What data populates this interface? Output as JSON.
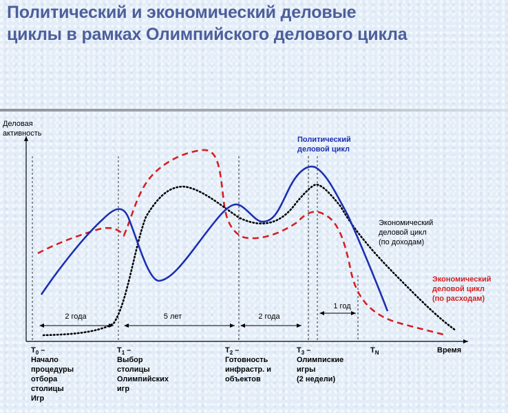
{
  "title": {
    "line1": "Политический и экономический деловые",
    "line2": "циклы в рамках Олимпийского делового цикла"
  },
  "axes": {
    "y_label_line1": "Деловая",
    "y_label_line2": "активность",
    "x_label": "Время"
  },
  "ticks": [
    {
      "name": "T",
      "sub": "0",
      "suffix": " –",
      "desc": [
        "Начало",
        "процедуры",
        "отбора",
        "столицы",
        "Игр"
      ]
    },
    {
      "name": "T",
      "sub": "1",
      "suffix": " –",
      "desc": [
        "Выбор",
        "столицы",
        "Олимпийских",
        "игр"
      ]
    },
    {
      "name": "T",
      "sub": "2",
      "suffix": " –",
      "desc": [
        "Готовность",
        "инфрастр. и",
        "объектов"
      ]
    },
    {
      "name": "T",
      "sub": "3",
      "suffix": " –",
      "desc": [
        "Олимпиские",
        "игры",
        "(2 недели)"
      ]
    },
    {
      "name": "T",
      "sub": "N",
      "suffix": "",
      "desc": []
    }
  ],
  "intervals": [
    "2 года",
    "5 лет",
    "2 года",
    "1 год"
  ],
  "series": {
    "political": {
      "label_line1": "Политический",
      "label_line2": "деловой цикл",
      "color": "#1c2fb0"
    },
    "economic_income": {
      "label_line1": "Экономический",
      "label_line2": "деловой цикл",
      "label_line3": "(по доходам)",
      "color": "#000000"
    },
    "economic_expense": {
      "label_line1": "Экономический",
      "label_line2": "деловой цикл",
      "label_line3": "(по расходам)",
      "color": "#d42020"
    }
  }
}
